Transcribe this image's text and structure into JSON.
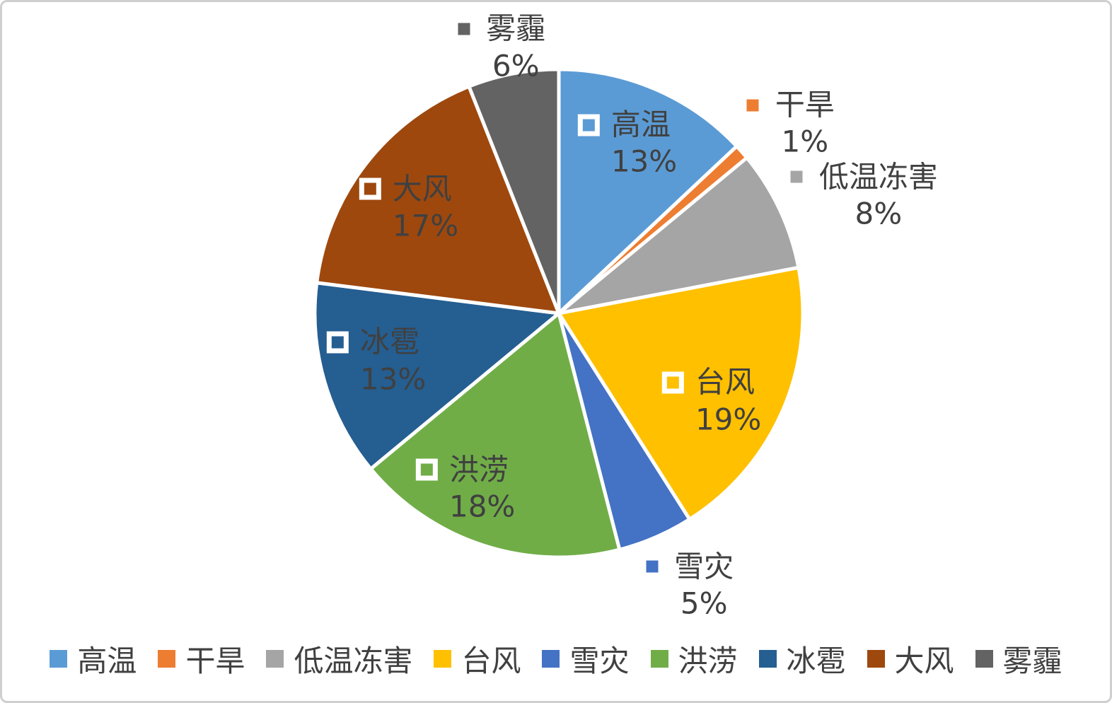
{
  "chart_data": {
    "type": "pie",
    "direction": "clockwise",
    "start_angle_deg": 0,
    "legend_position": "bottom",
    "background_color": "#FFFFFF",
    "slice_border_color": "#FFFFFF",
    "label_text_color": "#404040",
    "canvas_border_color": "#CFCFCF",
    "categories": [
      "高温",
      "干旱",
      "低温冻害",
      "台风",
      "雪灾",
      "洪涝",
      "冰雹",
      "大风",
      "雾霾"
    ],
    "values": [
      13,
      1,
      8,
      19,
      5,
      18,
      13,
      17,
      6
    ],
    "slices": [
      {
        "name": "高温",
        "value": 13,
        "percent_label": "13%",
        "color": "#5B9BD5",
        "label_placement": "inside"
      },
      {
        "name": "干旱",
        "value": 1,
        "percent_label": "1%",
        "color": "#ED7D31",
        "label_placement": "outside"
      },
      {
        "name": "低温冻害",
        "value": 8,
        "percent_label": "8%",
        "color": "#A5A5A5",
        "label_placement": "outside"
      },
      {
        "name": "台风",
        "value": 19,
        "percent_label": "19%",
        "color": "#FFC000",
        "label_placement": "inside"
      },
      {
        "name": "雪灾",
        "value": 5,
        "percent_label": "5%",
        "color": "#4472C4",
        "label_placement": "outside"
      },
      {
        "name": "洪涝",
        "value": 18,
        "percent_label": "18%",
        "color": "#70AD47",
        "label_placement": "inside"
      },
      {
        "name": "冰雹",
        "value": 13,
        "percent_label": "13%",
        "color": "#255E91",
        "label_placement": "inside"
      },
      {
        "name": "大风",
        "value": 17,
        "percent_label": "17%",
        "color": "#9E480E",
        "label_placement": "inside"
      },
      {
        "name": "雾霾",
        "value": 6,
        "percent_label": "6%",
        "color": "#636363",
        "label_placement": "outside"
      }
    ],
    "legend": [
      "高温",
      "干旱",
      "低温冻害",
      "台风",
      "雪灾",
      "洪涝",
      "冰雹",
      "大风",
      "雾霾"
    ]
  }
}
